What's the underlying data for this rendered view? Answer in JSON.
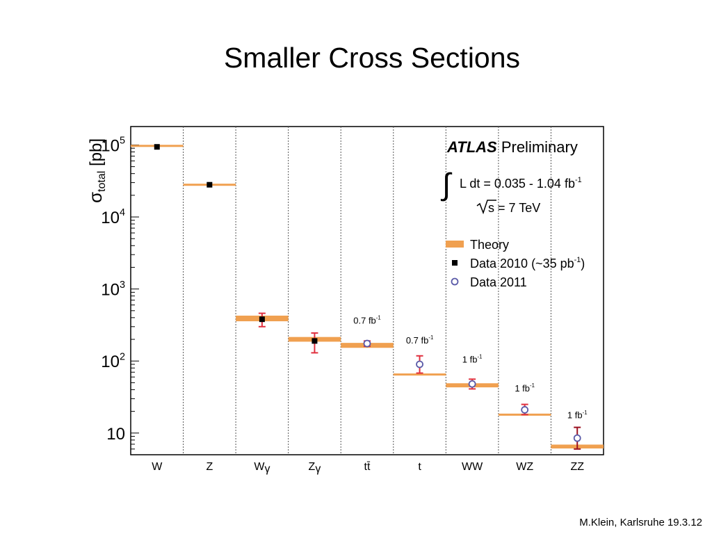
{
  "slide": {
    "title": "Smaller Cross Sections",
    "footer": "M.Klein, Karlsruhe 19.3.12"
  },
  "colors": {
    "theory": "#f0a050",
    "data2010": "#000000",
    "data2011": "#5a5aa8",
    "error_2011": "#e0303e",
    "error_zz": "#9b1020"
  },
  "chart_data": {
    "type": "scatter",
    "yscale": "log",
    "ylim": [
      5,
      180000
    ],
    "ylabel": "σ",
    "ylabel_sub": "total",
    "ylabel_unit": "[pb]",
    "y_ticks": [
      {
        "value": 10,
        "base": "10",
        "exp": ""
      },
      {
        "value": 100,
        "base": "10",
        "exp": "2"
      },
      {
        "value": 1000,
        "base": "10",
        "exp": "3"
      },
      {
        "value": 10000,
        "base": "10",
        "exp": "4"
      },
      {
        "value": 100000,
        "base": "10",
        "exp": "5"
      }
    ],
    "categories": [
      {
        "key": "W",
        "label": "W",
        "sub": ""
      },
      {
        "key": "Z",
        "label": "Z",
        "sub": ""
      },
      {
        "key": "Wgamma",
        "label": "W",
        "sub": "γ"
      },
      {
        "key": "Zgamma",
        "label": "Z",
        "sub": "γ"
      },
      {
        "key": "ttbar",
        "label": "tt̄",
        "sub": ""
      },
      {
        "key": "t",
        "label": "t",
        "sub": ""
      },
      {
        "key": "WW",
        "label": "WW",
        "sub": ""
      },
      {
        "key": "WZ",
        "label": "WZ",
        "sub": ""
      },
      {
        "key": "ZZ",
        "label": "ZZ",
        "sub": ""
      }
    ],
    "theory": [
      {
        "cat": 0,
        "value": 97000,
        "band": [
          95000,
          99000
        ]
      },
      {
        "cat": 1,
        "value": 28000,
        "band": [
          27500,
          28500
        ]
      },
      {
        "cat": 2,
        "value": 390,
        "band": [
          355,
          425
        ]
      },
      {
        "cat": 3,
        "value": 200,
        "band": [
          185,
          215
        ]
      },
      {
        "cat": 4,
        "value": 165,
        "band": [
          152,
          178
        ]
      },
      {
        "cat": 5,
        "value": 65,
        "band": [
          63,
          67
        ]
      },
      {
        "cat": 6,
        "value": 46,
        "band": [
          43,
          49
        ]
      },
      {
        "cat": 7,
        "value": 18,
        "band": [
          17.4,
          18.6
        ]
      },
      {
        "cat": 8,
        "value": 6.5,
        "band": [
          6.1,
          6.9
        ]
      }
    ],
    "data_2010": [
      {
        "cat": 0,
        "value": 94000
      },
      {
        "cat": 1,
        "value": 28000
      },
      {
        "cat": 2,
        "value": 380,
        "err": [
          300,
          460
        ]
      },
      {
        "cat": 3,
        "value": 190,
        "err": [
          130,
          245
        ]
      }
    ],
    "data_2011": [
      {
        "cat": 4,
        "value": 175,
        "err": [
          160,
          190
        ]
      },
      {
        "cat": 5,
        "value": 90,
        "err": [
          68,
          118
        ]
      },
      {
        "cat": 6,
        "value": 48,
        "err": [
          41,
          56
        ]
      },
      {
        "cat": 7,
        "value": 21,
        "err": [
          18,
          25
        ]
      },
      {
        "cat": 8,
        "value": 8.5,
        "err": [
          6,
          12
        ]
      }
    ],
    "lumi_annotations": [
      {
        "cat": 4,
        "text": "0.7 fb",
        "exp": "-1",
        "value": 330
      },
      {
        "cat": 5,
        "text": "0.7 fb",
        "exp": "-1",
        "value": 175
      },
      {
        "cat": 6,
        "text": "1 fb",
        "exp": "-1",
        "value": 95
      },
      {
        "cat": 7,
        "text": "1 fb",
        "exp": "-1",
        "value": 38
      },
      {
        "cat": 8,
        "text": "1 fb",
        "exp": "-1",
        "value": 16
      }
    ],
    "labels": {
      "experiment": "ATLAS",
      "status": "Preliminary",
      "lumi_text": "L dt = 0.035 - 1.04 fb",
      "lumi_exp": "-1",
      "energy_text": "s = 7 TeV"
    },
    "legend": {
      "position": "top-right",
      "entries": [
        {
          "type": "band",
          "label": "Theory"
        },
        {
          "type": "square",
          "label": "Data 2010  (~35 pb",
          "exp": "-1",
          "suffix": ")"
        },
        {
          "type": "circle",
          "label": "Data 2011"
        }
      ]
    }
  }
}
